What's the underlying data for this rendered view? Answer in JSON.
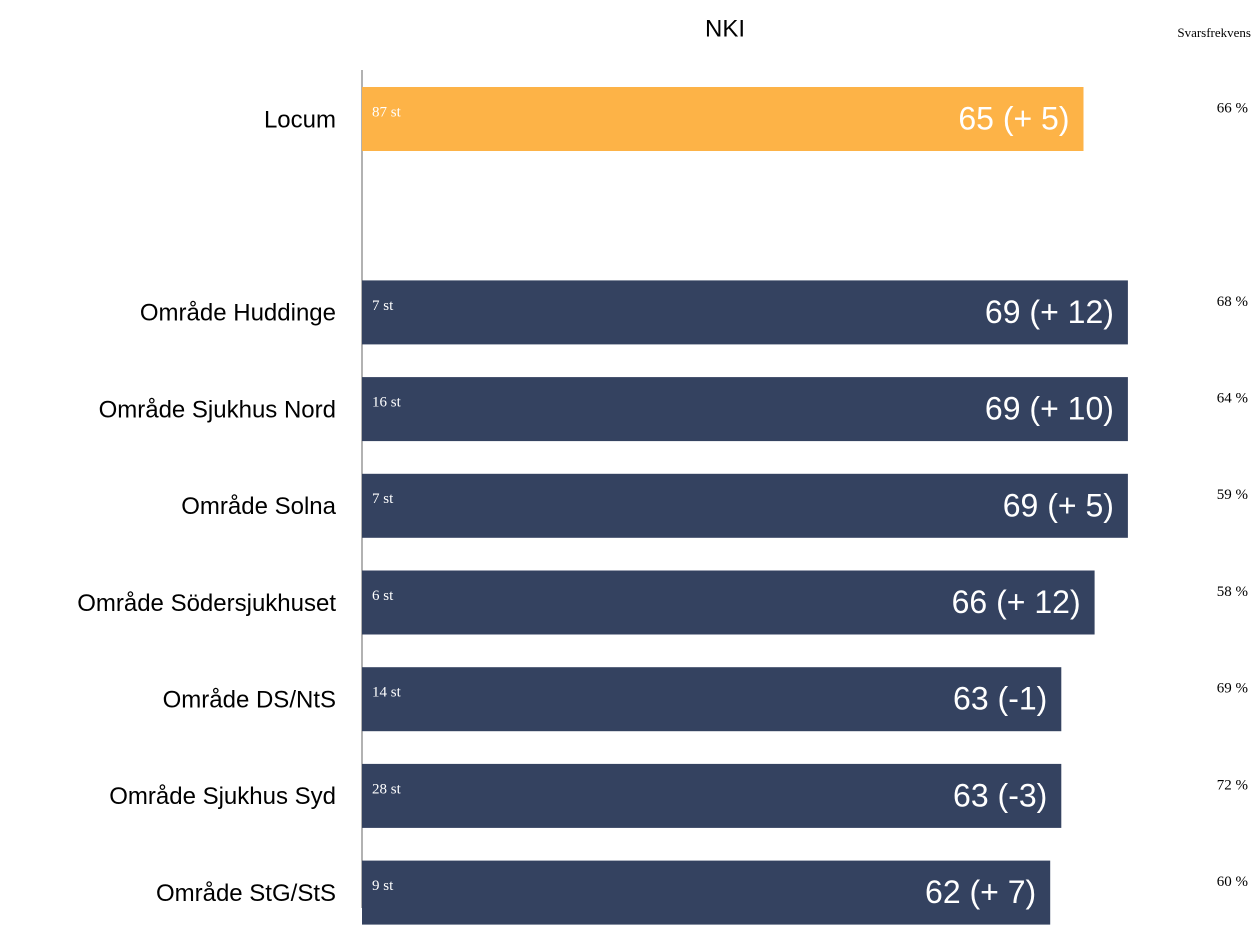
{
  "chart_data": {
    "type": "bar",
    "orientation": "horizontal",
    "title": "NKI",
    "categories": [
      "Locum",
      null,
      "Område Huddinge",
      "Område Sjukhus Nord",
      "Område Solna",
      "Område Södersjukhuset",
      "Område DS/NtS",
      "Område Sjukhus Syd",
      "Område StG/StS"
    ],
    "values": [
      65,
      null,
      69,
      69,
      69,
      66,
      63,
      63,
      62
    ],
    "value_labels": [
      "65 (+ 5)",
      null,
      "69 (+ 12)",
      "69 (+ 10)",
      "69 (+ 5)",
      "66 (+ 12)",
      "63 (-1)",
      "63 (-3)",
      "62 (+ 7)"
    ],
    "colors": [
      "#fdb347",
      null,
      "#344260",
      "#344260",
      "#344260",
      "#344260",
      "#344260",
      "#344260",
      "#344260"
    ],
    "counts": [
      "87 st",
      null,
      "7 st",
      "16 st",
      "7 st",
      "6 st",
      "14 st",
      "28 st",
      "9 st"
    ],
    "response_rate_title": "Svarsfrekvens",
    "response_rates": [
      "66 %",
      null,
      "68 %",
      "64 %",
      "59 %",
      "58 %",
      "69 %",
      "72 %",
      "60 %"
    ]
  }
}
